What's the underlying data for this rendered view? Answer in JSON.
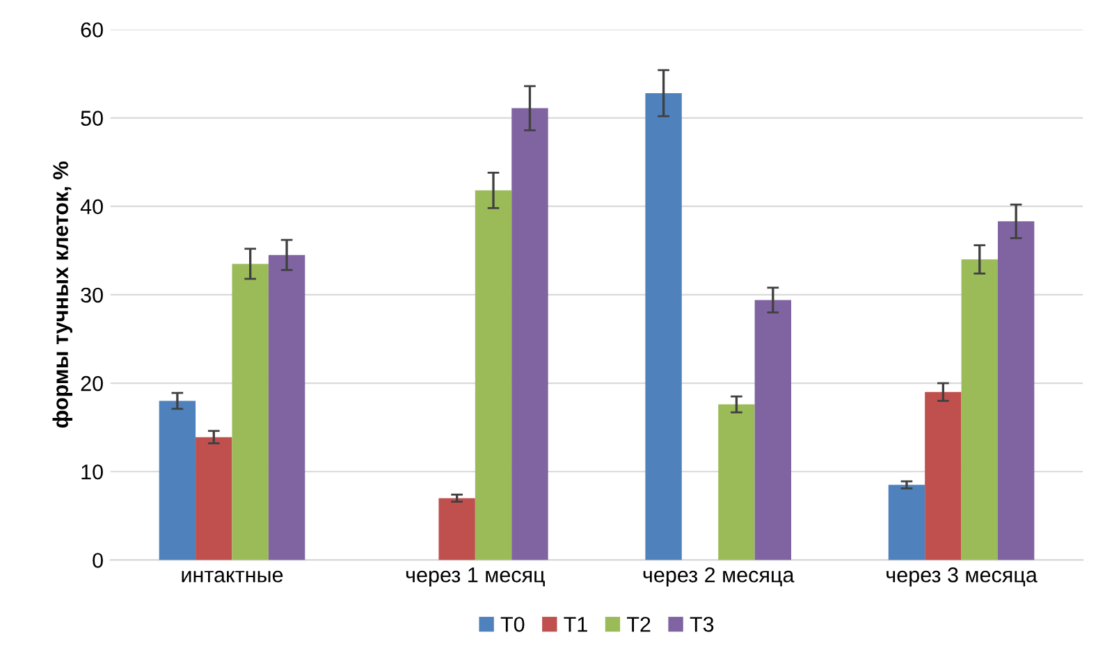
{
  "chart_data": {
    "type": "bar",
    "ylabel": "формы тучных клеток, %",
    "categories": [
      "интактные",
      "через 1 месяц",
      "через 2 месяца",
      "через 3 месяца"
    ],
    "series": [
      {
        "name": "T0",
        "color": "#4f81bd",
        "values": [
          18,
          null,
          52.8,
          8.5
        ],
        "errors": [
          0.9,
          null,
          2.6,
          0.4
        ]
      },
      {
        "name": "T1",
        "color": "#c0504d",
        "values": [
          13.9,
          7,
          null,
          19
        ],
        "errors": [
          0.7,
          0.4,
          null,
          1
        ]
      },
      {
        "name": "T2",
        "color": "#9bbb59",
        "values": [
          33.5,
          41.8,
          17.6,
          34
        ],
        "errors": [
          1.7,
          2,
          0.9,
          1.6
        ]
      },
      {
        "name": "T3",
        "color": "#8064a2",
        "values": [
          34.5,
          51.1,
          29.4,
          38.3
        ],
        "errors": [
          1.7,
          2.5,
          1.4,
          1.9
        ]
      }
    ],
    "ylim": [
      0,
      60
    ],
    "yticks": [
      0,
      10,
      20,
      30,
      40,
      50,
      60
    ],
    "grid": "y",
    "legend": "bottom"
  }
}
